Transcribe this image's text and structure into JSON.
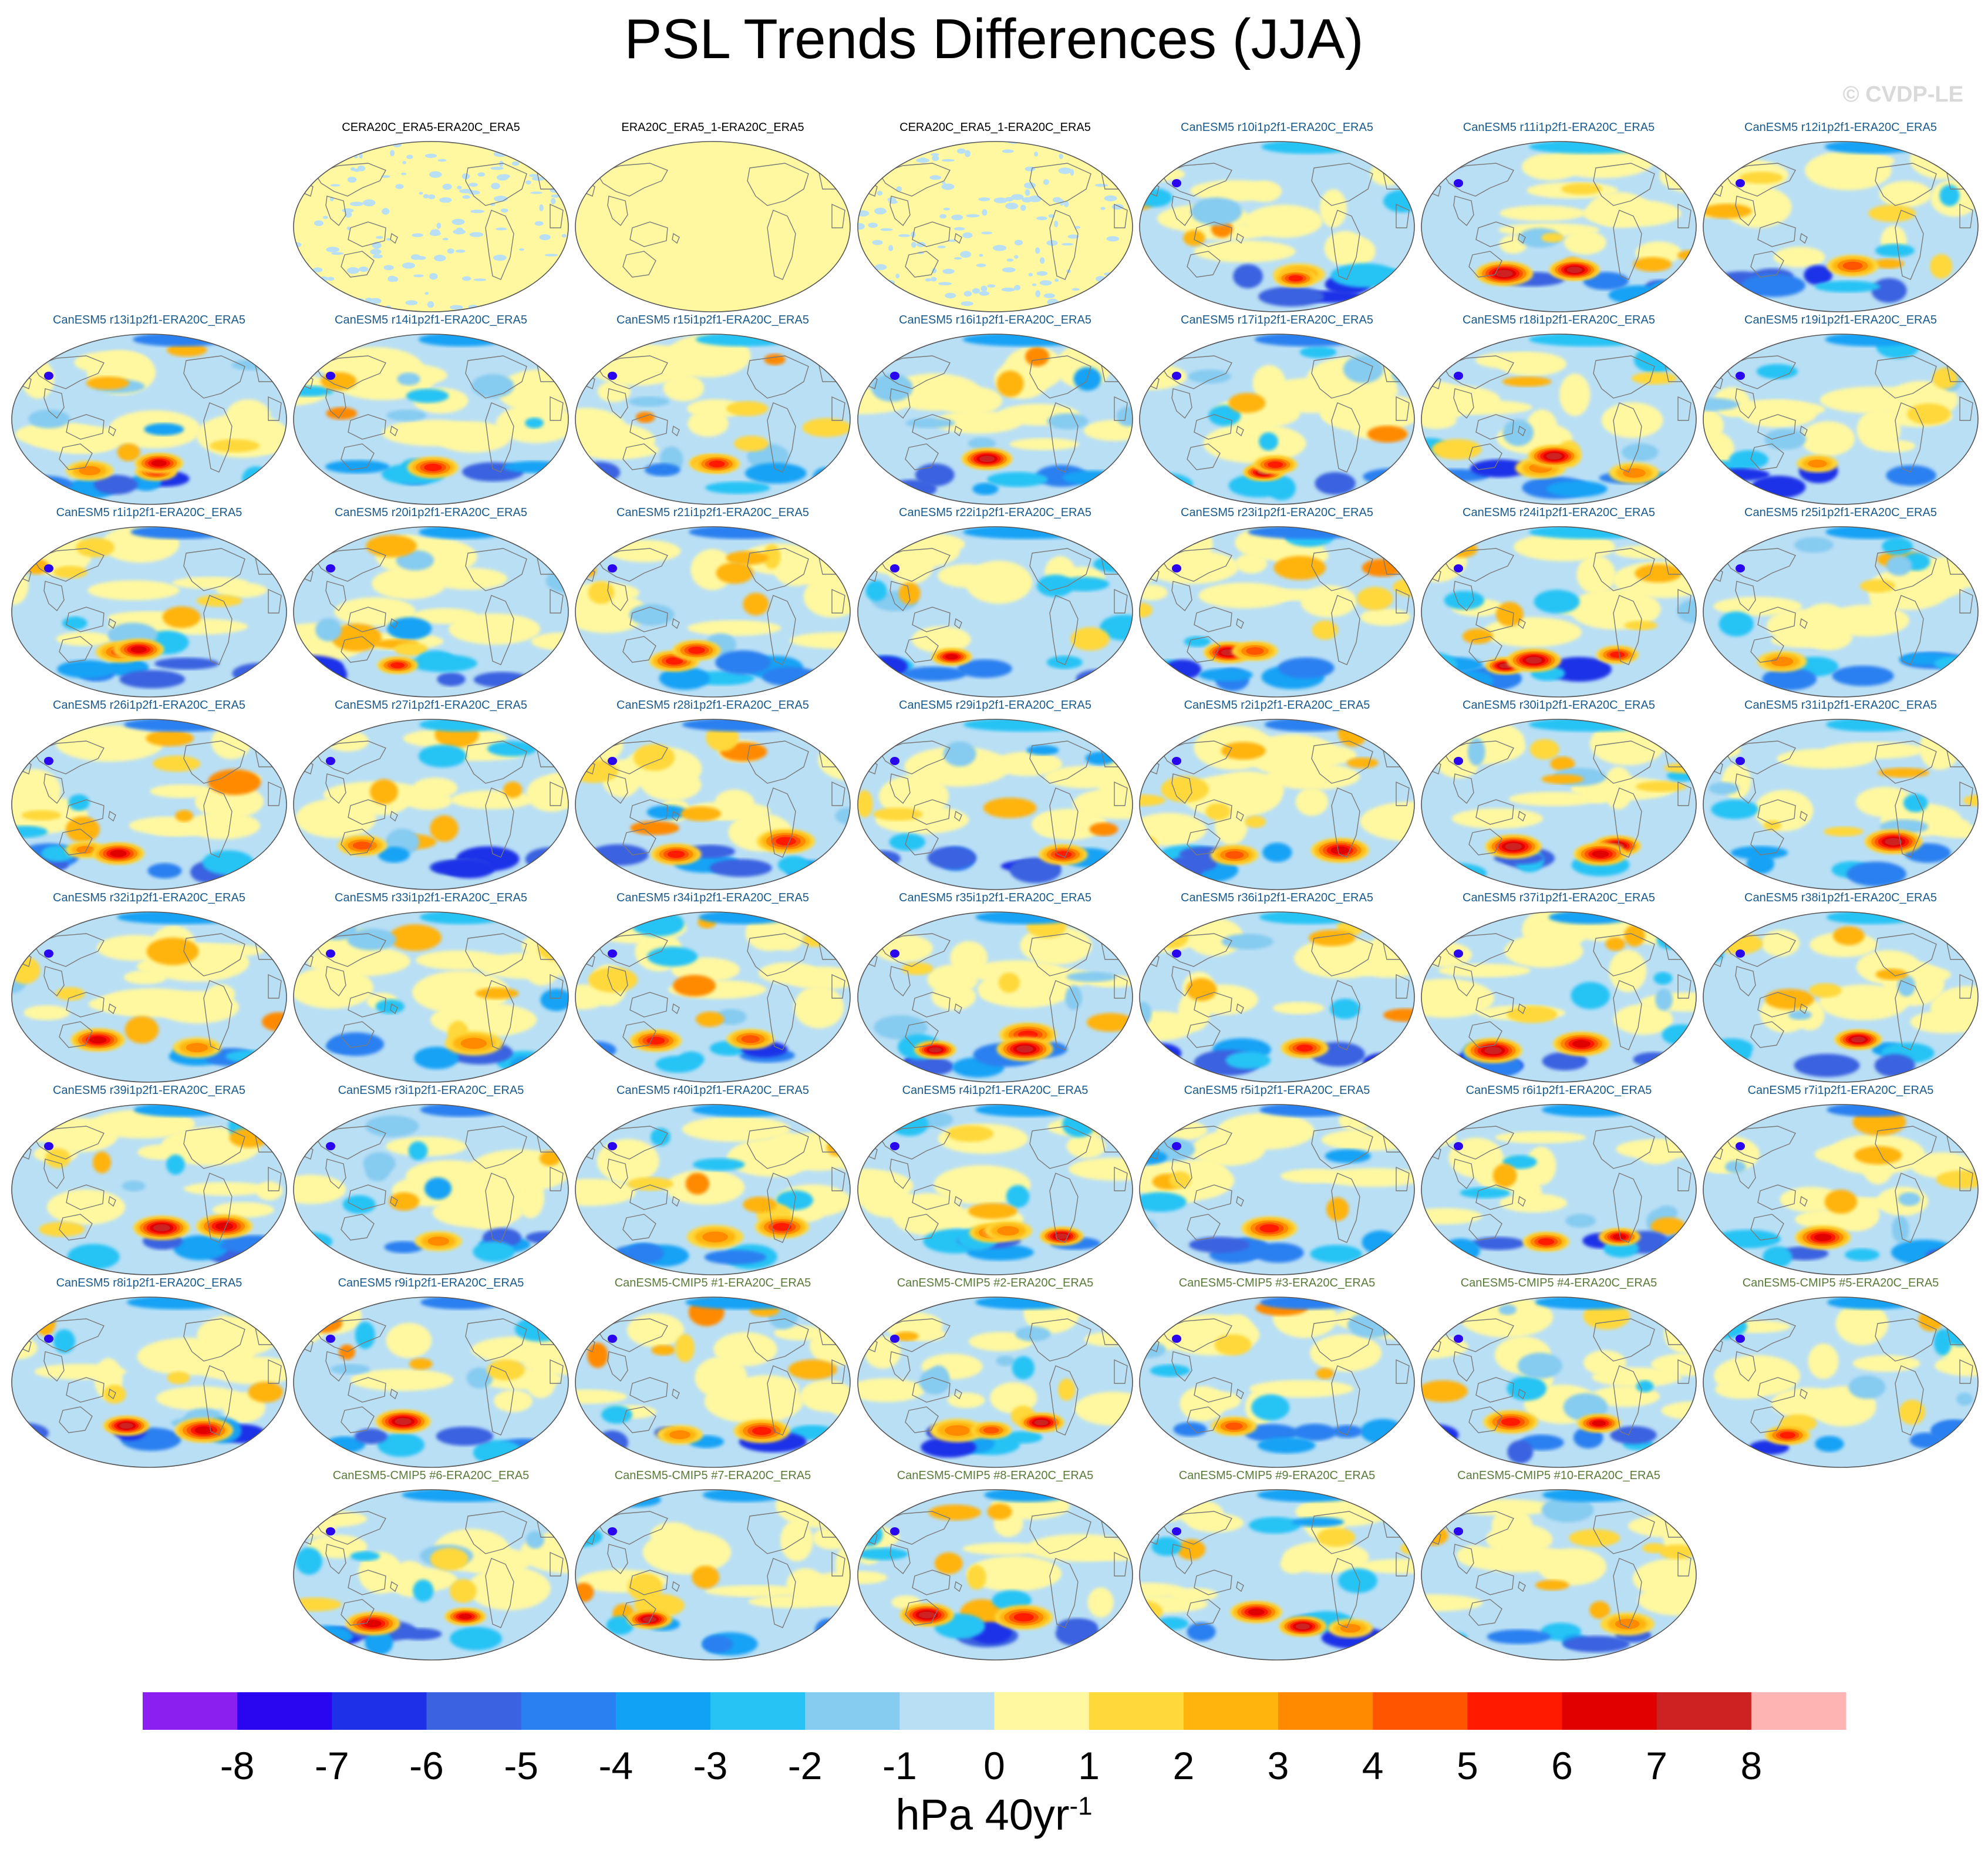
{
  "title": "PSL Trends Differences (JJA)",
  "watermark": "© CVDP-LE",
  "units": {
    "text": "hPa 40yr",
    "exponent": "-1"
  },
  "chart_data": {
    "type": "map-panel-grid",
    "title": "PSL Trends Differences (JJA)",
    "variable": "PSL",
    "season": "JJA",
    "units": "hPa 40yr-1",
    "projection": "Robinson",
    "colorbar": {
      "labels": [
        "-8",
        "-7",
        "-6",
        "-5",
        "-4",
        "-3",
        "-2",
        "-1",
        "0",
        "1",
        "2",
        "3",
        "4",
        "5",
        "6",
        "7",
        "8"
      ],
      "levels": [
        -8,
        -7,
        -6,
        -5,
        -4,
        -3,
        -2,
        -1,
        0,
        1,
        2,
        3,
        4,
        5,
        6,
        7,
        8
      ],
      "colors": [
        "#8a1ff0",
        "#2a06f0",
        "#1e30e8",
        "#3b62e0",
        "#2a80f0",
        "#12a2f5",
        "#28c3f5",
        "#86cbf0",
        "#b9dff5",
        "#fff8a0",
        "#ffd83a",
        "#ffb30d",
        "#ff8a00",
        "#ff5500",
        "#ff1a00",
        "#e00000",
        "#cc2222",
        "#ffb4b4"
      ],
      "orientation": "horizontal",
      "position": "bottom"
    },
    "panels": [
      {
        "title": "CERA20C_ERA5-ERA20C_ERA5",
        "group": "obs"
      },
      {
        "title": "ERA20C_ERA5_1-ERA20C_ERA5",
        "group": "obs"
      },
      {
        "title": "CERA20C_ERA5_1-ERA20C_ERA5",
        "group": "obs"
      },
      {
        "title": "CanESM5 r10i1p2f1-ERA20C_ERA5",
        "group": "member"
      },
      {
        "title": "CanESM5 r11i1p2f1-ERA20C_ERA5",
        "group": "member"
      },
      {
        "title": "CanESM5 r12i1p2f1-ERA20C_ERA5",
        "group": "member"
      },
      {
        "title": "CanESM5 r13i1p2f1-ERA20C_ERA5",
        "group": "member"
      },
      {
        "title": "CanESM5 r14i1p2f1-ERA20C_ERA5",
        "group": "member"
      },
      {
        "title": "CanESM5 r15i1p2f1-ERA20C_ERA5",
        "group": "member"
      },
      {
        "title": "CanESM5 r16i1p2f1-ERA20C_ERA5",
        "group": "member"
      },
      {
        "title": "CanESM5 r17i1p2f1-ERA20C_ERA5",
        "group": "member"
      },
      {
        "title": "CanESM5 r18i1p2f1-ERA20C_ERA5",
        "group": "member"
      },
      {
        "title": "CanESM5 r19i1p2f1-ERA20C_ERA5",
        "group": "member"
      },
      {
        "title": "CanESM5 r1i1p2f1-ERA20C_ERA5",
        "group": "member"
      },
      {
        "title": "CanESM5 r20i1p2f1-ERA20C_ERA5",
        "group": "member"
      },
      {
        "title": "CanESM5 r21i1p2f1-ERA20C_ERA5",
        "group": "member"
      },
      {
        "title": "CanESM5 r22i1p2f1-ERA20C_ERA5",
        "group": "member"
      },
      {
        "title": "CanESM5 r23i1p2f1-ERA20C_ERA5",
        "group": "member"
      },
      {
        "title": "CanESM5 r24i1p2f1-ERA20C_ERA5",
        "group": "member"
      },
      {
        "title": "CanESM5 r25i1p2f1-ERA20C_ERA5",
        "group": "member"
      },
      {
        "title": "CanESM5 r26i1p2f1-ERA20C_ERA5",
        "group": "member"
      },
      {
        "title": "CanESM5 r27i1p2f1-ERA20C_ERA5",
        "group": "member"
      },
      {
        "title": "CanESM5 r28i1p2f1-ERA20C_ERA5",
        "group": "member"
      },
      {
        "title": "CanESM5 r29i1p2f1-ERA20C_ERA5",
        "group": "member"
      },
      {
        "title": "CanESM5 r2i1p2f1-ERA20C_ERA5",
        "group": "member"
      },
      {
        "title": "CanESM5 r30i1p2f1-ERA20C_ERA5",
        "group": "member"
      },
      {
        "title": "CanESM5 r31i1p2f1-ERA20C_ERA5",
        "group": "member"
      },
      {
        "title": "CanESM5 r32i1p2f1-ERA20C_ERA5",
        "group": "member"
      },
      {
        "title": "CanESM5 r33i1p2f1-ERA20C_ERA5",
        "group": "member"
      },
      {
        "title": "CanESM5 r34i1p2f1-ERA20C_ERA5",
        "group": "member"
      },
      {
        "title": "CanESM5 r35i1p2f1-ERA20C_ERA5",
        "group": "member"
      },
      {
        "title": "CanESM5 r36i1p2f1-ERA20C_ERA5",
        "group": "member"
      },
      {
        "title": "CanESM5 r37i1p2f1-ERA20C_ERA5",
        "group": "member"
      },
      {
        "title": "CanESM5 r38i1p2f1-ERA20C_ERA5",
        "group": "member"
      },
      {
        "title": "CanESM5 r39i1p2f1-ERA20C_ERA5",
        "group": "member"
      },
      {
        "title": "CanESM5 r3i1p2f1-ERA20C_ERA5",
        "group": "member"
      },
      {
        "title": "CanESM5 r40i1p2f1-ERA20C_ERA5",
        "group": "member"
      },
      {
        "title": "CanESM5 r4i1p2f1-ERA20C_ERA5",
        "group": "member"
      },
      {
        "title": "CanESM5 r5i1p2f1-ERA20C_ERA5",
        "group": "member"
      },
      {
        "title": "CanESM5 r6i1p2f1-ERA20C_ERA5",
        "group": "member"
      },
      {
        "title": "CanESM5 r7i1p2f1-ERA20C_ERA5",
        "group": "member"
      },
      {
        "title": "CanESM5 r8i1p2f1-ERA20C_ERA5",
        "group": "member"
      },
      {
        "title": "CanESM5 r9i1p2f1-ERA20C_ERA5",
        "group": "member"
      },
      {
        "title": "CanESM5-CMIP5 #1-ERA20C_ERA5",
        "group": "cmip5"
      },
      {
        "title": "CanESM5-CMIP5 #2-ERA20C_ERA5",
        "group": "cmip5"
      },
      {
        "title": "CanESM5-CMIP5 #3-ERA20C_ERA5",
        "group": "cmip5"
      },
      {
        "title": "CanESM5-CMIP5 #4-ERA20C_ERA5",
        "group": "cmip5"
      },
      {
        "title": "CanESM5-CMIP5 #5-ERA20C_ERA5",
        "group": "cmip5"
      },
      {
        "title": "CanESM5-CMIP5 #6-ERA20C_ERA5",
        "group": "cmip5"
      },
      {
        "title": "CanESM5-CMIP5 #7-ERA20C_ERA5",
        "group": "cmip5"
      },
      {
        "title": "CanESM5-CMIP5 #8-ERA20C_ERA5",
        "group": "cmip5"
      },
      {
        "title": "CanESM5-CMIP5 #9-ERA20C_ERA5",
        "group": "cmip5"
      },
      {
        "title": "CanESM5-CMIP5 #10-ERA20C_ERA5",
        "group": "cmip5"
      }
    ]
  },
  "group_colors": {
    "obs": "#000000",
    "member": "#1a5a8c",
    "cmip5": "#5a7a3a"
  },
  "map_colors": {
    "ocean": "#b9dff5",
    "positive": "#fff8a0",
    "coast": "#7a7a7a",
    "border": "#555555"
  }
}
